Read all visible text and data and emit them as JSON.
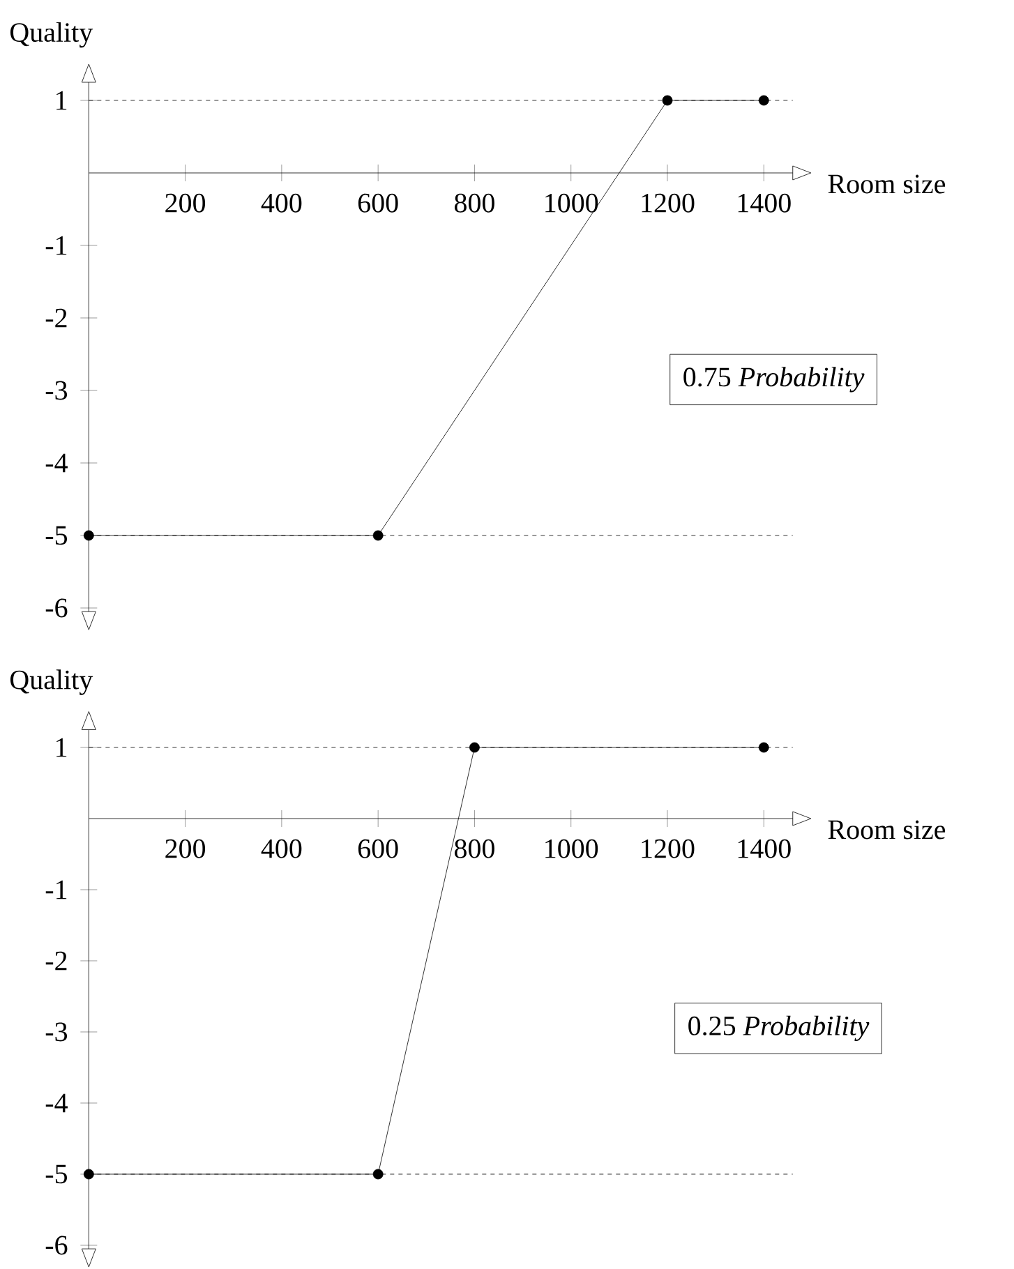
{
  "chart_data": [
    {
      "type": "line",
      "xlabel": "Room size",
      "ylabel": "Quality",
      "x": [
        0,
        600,
        1200,
        1400
      ],
      "series": [
        {
          "color": "#000000",
          "values": [
            -5,
            -5,
            1,
            1
          ]
        }
      ],
      "xlim": [
        0,
        1460
      ],
      "ylim": [
        -6.05,
        1.25
      ],
      "xticks": [
        200,
        400,
        600,
        800,
        1000,
        1200,
        1400
      ],
      "yticks": [
        1,
        -1,
        -2,
        -3,
        -4,
        -5,
        -6
      ],
      "ref_lines": [
        {
          "axis": "y",
          "value": 1,
          "line_style": "dashed"
        },
        {
          "axis": "y",
          "value": -5,
          "line_style": "dashed"
        }
      ],
      "annotations": [
        "0.75 *Probability*"
      ],
      "marker": "circle",
      "line_style": "solid"
    },
    {
      "type": "line",
      "xlabel": "Room size",
      "ylabel": "Quality",
      "x": [
        0,
        600,
        800,
        1400
      ],
      "series": [
        {
          "color": "#000000",
          "values": [
            -5,
            -5,
            1,
            1
          ]
        }
      ],
      "xlim": [
        0,
        1460
      ],
      "ylim": [
        -6.05,
        1.25
      ],
      "xticks": [
        200,
        400,
        600,
        800,
        1000,
        1200,
        1400
      ],
      "yticks": [
        1,
        -1,
        -2,
        -3,
        -4,
        -5,
        -6
      ],
      "ref_lines": [
        {
          "axis": "y",
          "value": 1,
          "line_style": "dashed"
        },
        {
          "axis": "y",
          "value": -5,
          "line_style": "dashed"
        }
      ],
      "annotations": [
        "0.25 *Probability*"
      ],
      "marker": "circle",
      "line_style": "solid"
    }
  ]
}
